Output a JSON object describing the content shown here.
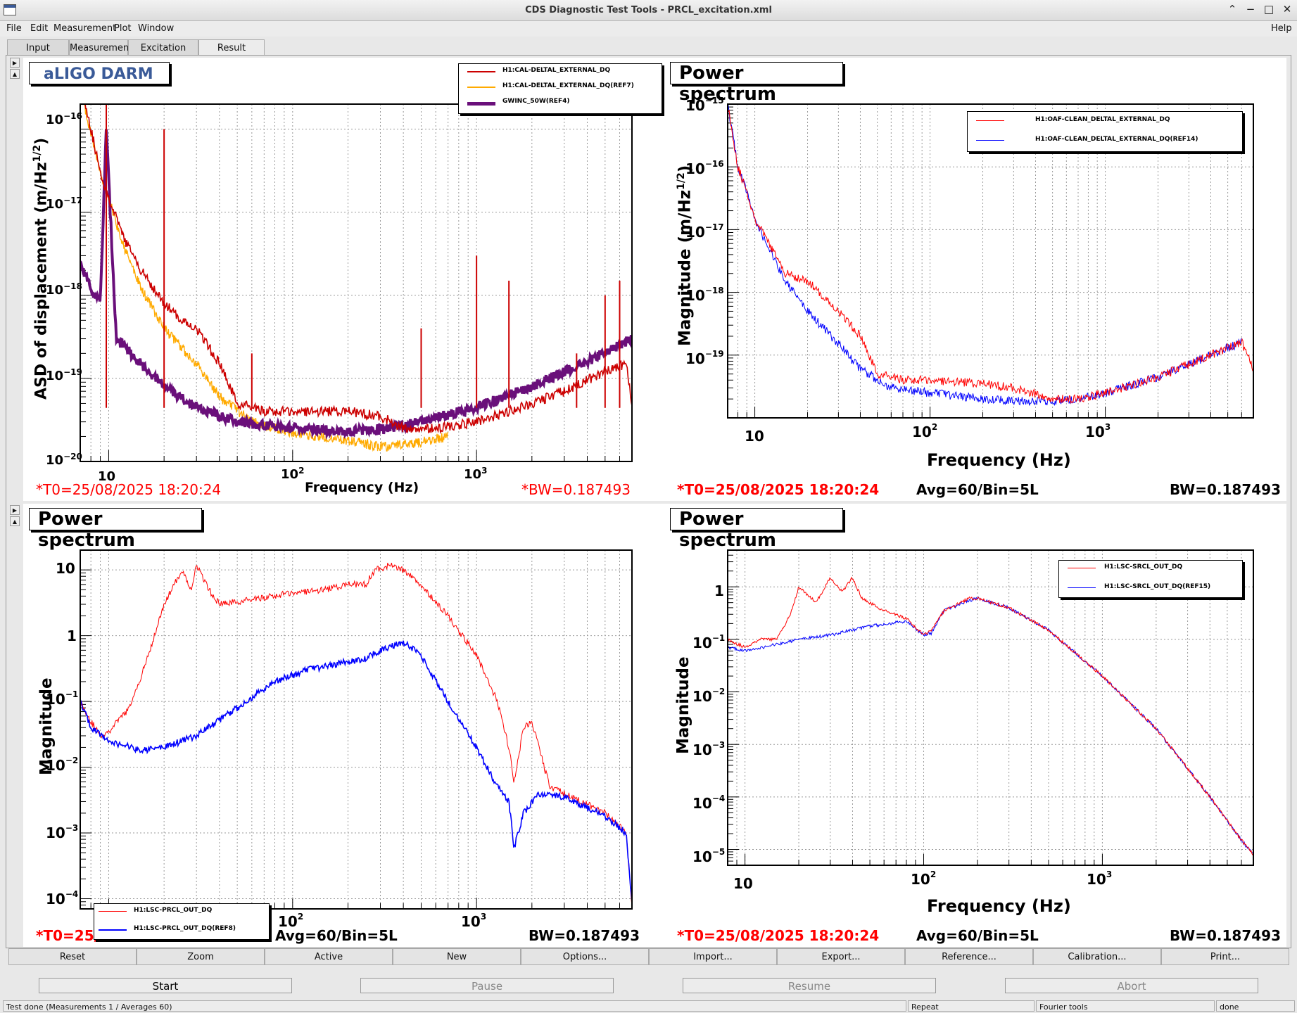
{
  "window": {
    "title": "CDS Diagnostic Test Tools - PRCL_excitation.xml"
  },
  "menu": [
    "File",
    "Edit",
    "Measurement",
    "Plot",
    "Window"
  ],
  "help": "Help",
  "tabs": [
    "Input",
    "Measurement",
    "Excitation",
    "Result"
  ],
  "active_tab": "Result",
  "toolbar": [
    "Reset",
    "Zoom",
    "Active",
    "New",
    "Options...",
    "Import...",
    "Export...",
    "Reference...",
    "Calibration...",
    "Print..."
  ],
  "actions": {
    "start": "Start",
    "pause": "Pause",
    "resume": "Resume",
    "abort": "Abort"
  },
  "status": {
    "message": "Test done (Measurements 1 / Averages 60)",
    "repeat": "Repeat",
    "fourier": "Fourier tools",
    "state": "done"
  },
  "colors": {
    "red": "#ff0000",
    "darkred": "#cc0000",
    "orange": "#ffaa00",
    "purple": "#6a0f7a",
    "blue": "#0000ff"
  },
  "chart_data": [
    {
      "type": "line",
      "title": "aLIGO DARM",
      "xlabel": "Frequency (Hz)",
      "ylabel": "ASD of displacement (m/Hz^1/2)",
      "xscale": "log",
      "yscale": "log",
      "xlim": [
        7,
        7000
      ],
      "ylim": [
        1e-20,
        2e-16
      ],
      "yticks": [
        "10^-16",
        "10^-17",
        "10^-18",
        "10^-19",
        "10^-20"
      ],
      "xticks": [
        "10",
        "10^2",
        "10^3"
      ],
      "footer": {
        "t0": "*T0=25/08/2025 18:20:24",
        "bw": "*BW=0.187493"
      },
      "legend_position": "top-right",
      "series": [
        {
          "name": "H1:CAL-DELTAL_EXTERNAL_DQ",
          "color": "#cc0000",
          "points": [
            [
              7,
              4e-16
            ],
            [
              9,
              3e-17
            ],
            [
              10,
              1.5e-17
            ],
            [
              12,
              5e-18
            ],
            [
              15,
              2e-18
            ],
            [
              20,
              8e-19
            ],
            [
              25,
              5e-19
            ],
            [
              30,
              4e-19
            ],
            [
              40,
              1.5e-19
            ],
            [
              50,
              5e-20
            ],
            [
              70,
              4e-20
            ],
            [
              100,
              4e-20
            ],
            [
              150,
              4e-20
            ],
            [
              200,
              4e-20
            ],
            [
              300,
              3.5e-20
            ],
            [
              400,
              2.5e-20
            ],
            [
              600,
              2.5e-20
            ],
            [
              1000,
              3e-20
            ],
            [
              2000,
              5e-20
            ],
            [
              3000,
              7e-20
            ],
            [
              5000,
              1.2e-19
            ],
            [
              6500,
              1.5e-19
            ],
            [
              7000,
              5e-20
            ]
          ],
          "peaks": [
            [
              9.7,
              2e-16
            ],
            [
              20,
              1e-16
            ],
            [
              60,
              2e-19
            ],
            [
              500,
              4e-19
            ],
            [
              1000,
              3e-18
            ],
            [
              1500,
              1.5e-18
            ],
            [
              3500,
              2e-19
            ],
            [
              5000,
              1e-18
            ],
            [
              6000,
              1.5e-18
            ]
          ]
        },
        {
          "name": "H1:CAL-DELTAL_EXTERNAL_DQ(REF7)",
          "color": "#ffaa00",
          "points": [
            [
              7,
              3e-16
            ],
            [
              9,
              3e-17
            ],
            [
              12,
              4e-18
            ],
            [
              15,
              1.2e-18
            ],
            [
              20,
              4e-19
            ],
            [
              30,
              1.5e-19
            ],
            [
              40,
              6e-20
            ],
            [
              60,
              3e-20
            ],
            [
              100,
              2.2e-20
            ],
            [
              200,
              1.8e-20
            ],
            [
              300,
              1.5e-20
            ],
            [
              500,
              1.7e-20
            ],
            [
              700,
              2e-20
            ]
          ]
        },
        {
          "name": "GWINC_50W(REF4)",
          "color": "#6a0f7a",
          "points": [
            [
              7,
              2.5e-18
            ],
            [
              8,
              1.2e-18
            ],
            [
              9,
              8e-19
            ],
            [
              9.7,
              1e-16
            ],
            [
              11,
              3e-19
            ],
            [
              15,
              1.5e-19
            ],
            [
              20,
              8e-20
            ],
            [
              30,
              4.5e-20
            ],
            [
              50,
              3e-20
            ],
            [
              100,
              2.5e-20
            ],
            [
              200,
              2.3e-20
            ],
            [
              300,
              2.4e-20
            ],
            [
              500,
              3e-20
            ],
            [
              1000,
              4.5e-20
            ],
            [
              2000,
              8e-20
            ],
            [
              4000,
              1.6e-19
            ],
            [
              7000,
              3e-19
            ]
          ]
        }
      ]
    },
    {
      "type": "line",
      "title": "Power spectrum",
      "xlabel": "Frequency (Hz)",
      "ylabel": "Magnitude (m/Hz^1/2)",
      "xscale": "log",
      "yscale": "log",
      "xlim": [
        7,
        7000
      ],
      "ylim": [
        1e-20,
        1e-15
      ],
      "yticks": [
        "10^-15",
        "10^-16",
        "10^-17",
        "10^-18",
        "10^-19"
      ],
      "xticks": [
        "10",
        "10^2",
        "10^3"
      ],
      "footer": {
        "t0": "*T0=25/08/2025 18:20:24",
        "avg": "Avg=60/Bin=5L",
        "bw": "BW=0.187493"
      },
      "legend_position": "top-right",
      "series": [
        {
          "name": "H1:OAF-CLEAN_DELTAL_EXTERNAL_DQ",
          "color": "#ff0000",
          "points": [
            [
              7,
              1e-15
            ],
            [
              8,
              1e-16
            ],
            [
              9,
              4e-17
            ],
            [
              10,
              1.5e-17
            ],
            [
              12,
              6e-18
            ],
            [
              15,
              2e-18
            ],
            [
              20,
              1.5e-18
            ],
            [
              30,
              5e-19
            ],
            [
              40,
              2e-19
            ],
            [
              50,
              5e-20
            ],
            [
              70,
              4e-20
            ],
            [
              100,
              4e-20
            ],
            [
              200,
              3.5e-20
            ],
            [
              300,
              3e-20
            ],
            [
              500,
              2e-20
            ],
            [
              700,
              2e-20
            ],
            [
              1000,
              2.5e-20
            ],
            [
              2000,
              4.5e-20
            ],
            [
              4000,
              1e-19
            ],
            [
              6000,
              1.6e-19
            ],
            [
              7000,
              6e-20
            ]
          ]
        },
        {
          "name": "H1:OAF-CLEAN_DELTAL_EXTERNAL_DQ(REF14)",
          "color": "#0000ff",
          "points": [
            [
              7,
              1e-15
            ],
            [
              8,
              1e-16
            ],
            [
              9,
              4e-17
            ],
            [
              10,
              1.5e-17
            ],
            [
              12,
              5e-18
            ],
            [
              15,
              1.5e-18
            ],
            [
              20,
              5e-19
            ],
            [
              30,
              1.5e-19
            ],
            [
              40,
              6e-20
            ],
            [
              60,
              3e-20
            ],
            [
              100,
              2.5e-20
            ],
            [
              200,
              2e-20
            ],
            [
              400,
              1.8e-20
            ],
            [
              700,
              2e-20
            ],
            [
              1000,
              2.5e-20
            ],
            [
              2000,
              4.5e-20
            ],
            [
              4000,
              1e-19
            ],
            [
              6000,
              1.6e-19
            ]
          ]
        }
      ]
    },
    {
      "type": "line",
      "title": "Power spectrum",
      "xlabel": "Frequency (Hz)",
      "ylabel": "Magnitude",
      "xscale": "log",
      "yscale": "log",
      "xlim": [
        7,
        7000
      ],
      "ylim": [
        7e-05,
        20
      ],
      "yticks": [
        "10",
        "1",
        "10^-1",
        "10^-2",
        "10^-3",
        "10^-4"
      ],
      "xticks": [
        "10^2",
        "10^3"
      ],
      "footer": {
        "t0": "*T0=25/",
        "avg": "Avg=60/Bin=5L",
        "bw": "BW=0.187493"
      },
      "legend_position": "bottom-left",
      "series": [
        {
          "name": "H1:LSC-PRCL_OUT_DQ",
          "color": "#ff0000",
          "points": [
            [
              7,
              0.1
            ],
            [
              8,
              0.05
            ],
            [
              9,
              0.03
            ],
            [
              10,
              0.035
            ],
            [
              13,
              0.08
            ],
            [
              16,
              0.4
            ],
            [
              20,
              3
            ],
            [
              25,
              10
            ],
            [
              28,
              5
            ],
            [
              30,
              12
            ],
            [
              35,
              5
            ],
            [
              40,
              3
            ],
            [
              60,
              3.5
            ],
            [
              100,
              4.5
            ],
            [
              150,
              5
            ],
            [
              200,
              6
            ],
            [
              250,
              6
            ],
            [
              280,
              10
            ],
            [
              350,
              12
            ],
            [
              450,
              8
            ],
            [
              700,
              2
            ],
            [
              1000,
              0.5
            ],
            [
              1300,
              0.1
            ],
            [
              1500,
              0.02
            ],
            [
              1600,
              0.006
            ],
            [
              1800,
              0.04
            ],
            [
              2000,
              0.05
            ],
            [
              2500,
              0.005
            ],
            [
              3000,
              0.004
            ],
            [
              5000,
              0.002
            ],
            [
              6500,
              0.001
            ],
            [
              7000,
              8e-05
            ]
          ]
        },
        {
          "name": "H1:LSC-PRCL_OUT_DQ(REF8)",
          "color": "#0000ff",
          "points": [
            [
              7,
              0.1
            ],
            [
              8,
              0.04
            ],
            [
              10,
              0.025
            ],
            [
              15,
              0.018
            ],
            [
              20,
              0.02
            ],
            [
              30,
              0.03
            ],
            [
              50,
              0.08
            ],
            [
              80,
              0.2
            ],
            [
              120,
              0.3
            ],
            [
              200,
              0.4
            ],
            [
              250,
              0.45
            ],
            [
              300,
              0.6
            ],
            [
              400,
              0.8
            ],
            [
              500,
              0.5
            ],
            [
              700,
              0.1
            ],
            [
              1000,
              0.02
            ],
            [
              1300,
              0.005
            ],
            [
              1500,
              0.003
            ],
            [
              1600,
              0.0006
            ],
            [
              1800,
              0.002
            ],
            [
              2200,
              0.004
            ],
            [
              3000,
              0.0035
            ],
            [
              5000,
              0.0018
            ],
            [
              6500,
              0.001
            ],
            [
              7000,
              8e-05
            ]
          ]
        }
      ]
    },
    {
      "type": "line",
      "title": "Power spectrum",
      "xlabel": "Frequency (Hz)",
      "ylabel": "Magnitude",
      "xscale": "log",
      "yscale": "log",
      "xlim": [
        8,
        7000
      ],
      "ylim": [
        5e-06,
        5
      ],
      "yticks": [
        "1",
        "10^-1",
        "10^-2",
        "10^-3",
        "10^-4",
        "10^-5"
      ],
      "xticks": [
        "10",
        "10^2",
        "10^3"
      ],
      "footer": {
        "t0": "*T0=25/08/2025 18:20:24",
        "avg": "Avg=60/Bin=5L",
        "bw": "BW=0.187493"
      },
      "legend_position": "top-right",
      "series": [
        {
          "name": "H1:LSC-SRCL_OUT_DQ",
          "color": "#ff0000",
          "points": [
            [
              8,
              0.1
            ],
            [
              10,
              0.07
            ],
            [
              12,
              0.1
            ],
            [
              15,
              0.1
            ],
            [
              18,
              0.3
            ],
            [
              20,
              1
            ],
            [
              25,
              0.5
            ],
            [
              30,
              1.5
            ],
            [
              35,
              0.8
            ],
            [
              40,
              1.5
            ],
            [
              45,
              0.6
            ],
            [
              60,
              0.35
            ],
            [
              80,
              0.25
            ],
            [
              100,
              0.12
            ],
            [
              110,
              0.15
            ],
            [
              130,
              0.35
            ],
            [
              180,
              0.6
            ],
            [
              200,
              0.6
            ],
            [
              300,
              0.4
            ],
            [
              500,
              0.15
            ],
            [
              1000,
              0.02
            ],
            [
              2000,
              0.002
            ],
            [
              4000,
              0.0001
            ],
            [
              6000,
              1.5e-05
            ],
            [
              7000,
              8e-06
            ]
          ]
        },
        {
          "name": "H1:LSC-SRCL_OUT_DQ(REF15)",
          "color": "#0000ff",
          "points": [
            [
              8,
              0.07
            ],
            [
              10,
              0.06
            ],
            [
              15,
              0.08
            ],
            [
              20,
              0.1
            ],
            [
              30,
              0.12
            ],
            [
              50,
              0.18
            ],
            [
              80,
              0.22
            ],
            [
              100,
              0.12
            ],
            [
              110,
              0.13
            ],
            [
              130,
              0.35
            ],
            [
              180,
              0.55
            ],
            [
              200,
              0.6
            ],
            [
              300,
              0.4
            ],
            [
              500,
              0.15
            ],
            [
              1000,
              0.02
            ],
            [
              2000,
              0.002
            ],
            [
              4000,
              0.0001
            ],
            [
              6000,
              1.5e-05
            ],
            [
              7000,
              8e-06
            ]
          ]
        }
      ]
    }
  ]
}
